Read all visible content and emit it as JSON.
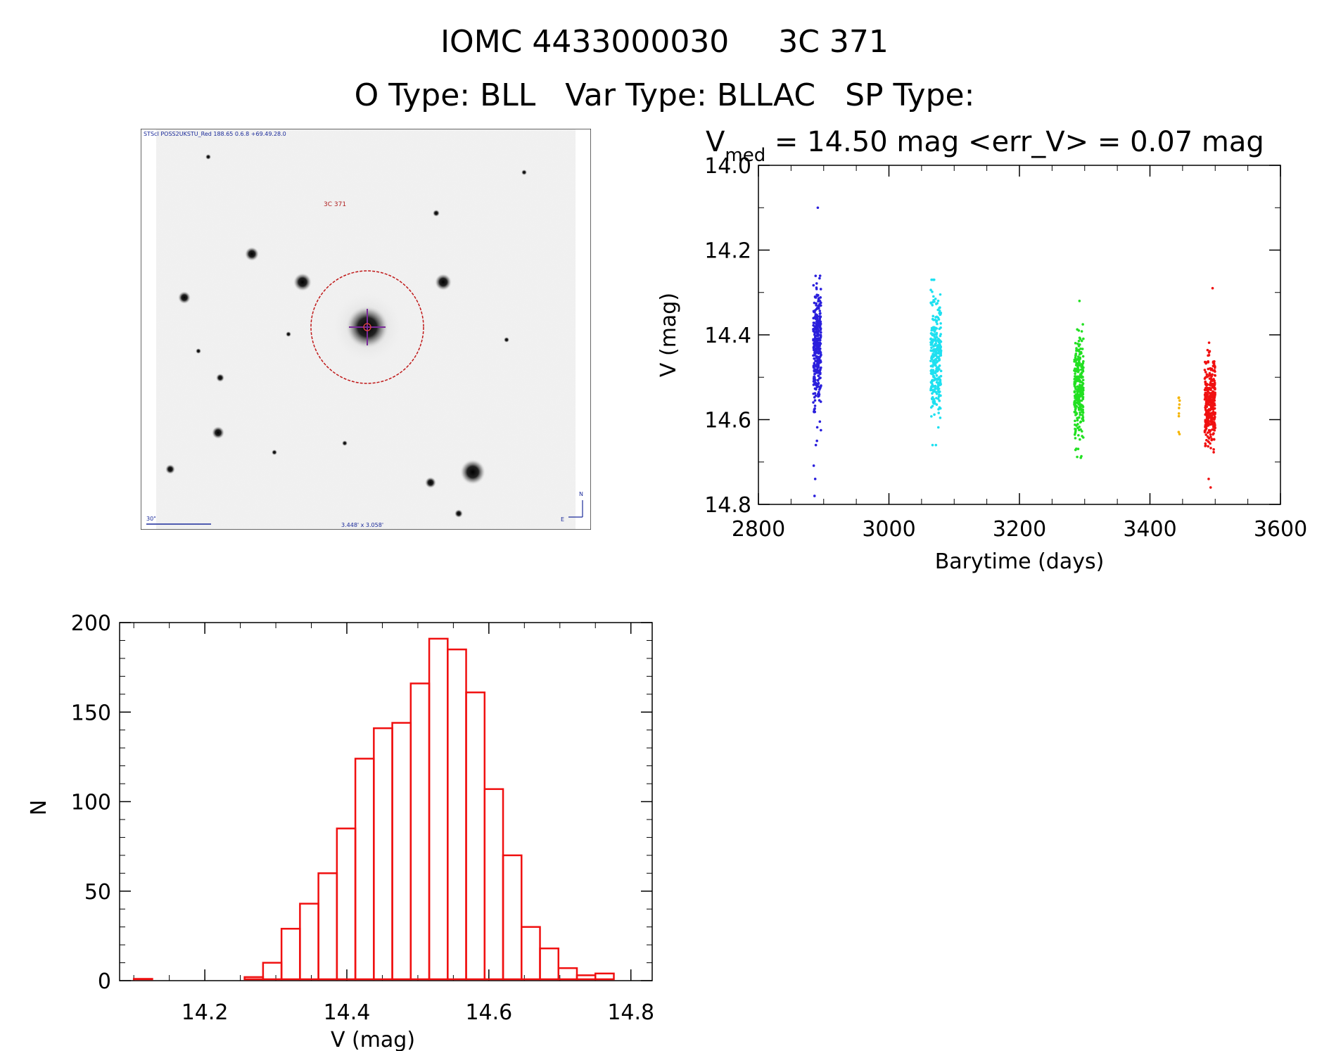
{
  "header": {
    "title": "IOMC 4433000030     3C 371",
    "subtitle": "O Type: BLL   Var Type: BLLAC   SP Type:"
  },
  "finding_chart": {
    "header_text": "STScI POSS2UKSTU_Red 188.65 0.6.8 +69.49.28.0",
    "target_label": "3C 371",
    "scale_label": "30\"",
    "fov_label": "3.448' x 3.058'",
    "north_label": "N",
    "east_label": "E"
  },
  "lightcurve_stats": {
    "prefix": "V",
    "subscript": "med",
    "text": " =  14.50 mag <err_V> = 0.07 mag"
  },
  "chart_data": [
    {
      "type": "scatter",
      "title": "V_med = 14.50 mag <err_V> = 0.07 mag",
      "xlabel": "Barytime (days)",
      "ylabel": "V (mag)",
      "xlim": [
        2800,
        3600
      ],
      "ylim": [
        14.8,
        14.0
      ],
      "y_inverted": true,
      "xticks": [
        2800,
        3000,
        3200,
        3400,
        3600
      ],
      "yticks": [
        14.0,
        14.2,
        14.4,
        14.6,
        14.8
      ],
      "xtick_labels": [
        "2800",
        "3000",
        "3200",
        "3400",
        "3600"
      ],
      "ytick_labels": [
        "14.0",
        "14.2",
        "14.4",
        "14.6",
        "14.8"
      ],
      "grid": false,
      "series": [
        {
          "color": "#2a1fdc",
          "x_range": [
            2884,
            2896
          ],
          "y_core": [
            14.32,
            14.55
          ],
          "y_extent": [
            14.26,
            14.78
          ],
          "outliers": [
            {
              "x": 2891,
              "y": 14.1
            },
            {
              "x": 2886,
              "y": 14.78
            },
            {
              "x": 2887,
              "y": 14.74
            },
            {
              "x": 2888,
              "y": 14.66
            }
          ],
          "count": 330
        },
        {
          "color": "#1ee0f0",
          "x_range": [
            3064,
            3080
          ],
          "y_core": [
            14.34,
            14.56
          ],
          "y_extent": [
            14.27,
            14.66
          ],
          "outliers": [
            {
              "x": 3072,
              "y": 14.66
            }
          ],
          "count": 300
        },
        {
          "color": "#22e022",
          "x_range": [
            3284,
            3298
          ],
          "y_core": [
            14.42,
            14.62
          ],
          "y_extent": [
            14.32,
            14.7
          ],
          "outliers": [
            {
              "x": 3292,
              "y": 14.32
            },
            {
              "x": 3294,
              "y": 14.69
            }
          ],
          "count": 280
        },
        {
          "color": "#f5b400",
          "x_range": [
            3444,
            3446
          ],
          "y_core": [
            14.45,
            14.65
          ],
          "y_extent": [
            14.45,
            14.65
          ],
          "outliers": [],
          "count": 9
        },
        {
          "color": "#f01010",
          "x_range": [
            3484,
            3500
          ],
          "y_core": [
            14.48,
            14.64
          ],
          "y_extent": [
            14.29,
            14.76
          ],
          "outliers": [
            {
              "x": 3496,
              "y": 14.29
            },
            {
              "x": 3493,
              "y": 14.76
            },
            {
              "x": 3490,
              "y": 14.74
            }
          ],
          "count": 340
        }
      ]
    },
    {
      "type": "bar",
      "subtype": "histogram",
      "xlabel": "V (mag)",
      "ylabel": "N",
      "xlim": [
        14.08,
        14.83
      ],
      "ylim": [
        0,
        200
      ],
      "xticks": [
        14.2,
        14.4,
        14.6,
        14.8
      ],
      "yticks": [
        0,
        50,
        100,
        150,
        200
      ],
      "xtick_labels": [
        "14.2",
        "14.4",
        "14.6",
        "14.8"
      ],
      "ytick_labels": [
        "0",
        "50",
        "100",
        "150",
        "200"
      ],
      "bar_color": "#f01010",
      "bin_width": 0.026,
      "bin_starts": [
        14.1,
        14.126,
        14.152,
        14.178,
        14.204,
        14.23,
        14.256,
        14.282,
        14.308,
        14.334,
        14.36,
        14.386,
        14.412,
        14.438,
        14.464,
        14.49,
        14.516,
        14.542,
        14.568,
        14.594,
        14.62,
        14.646,
        14.672,
        14.698,
        14.724,
        14.75
      ],
      "values": [
        1,
        0,
        0,
        0,
        0,
        0,
        2,
        10,
        29,
        43,
        60,
        85,
        124,
        141,
        144,
        166,
        191,
        185,
        161,
        107,
        70,
        30,
        18,
        7,
        3,
        4
      ]
    }
  ]
}
